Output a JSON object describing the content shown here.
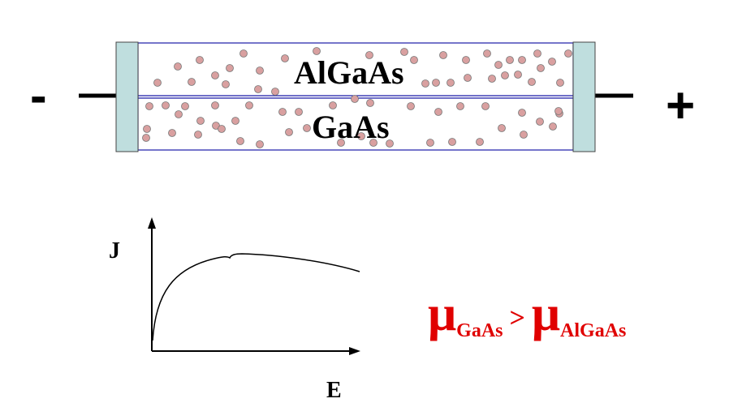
{
  "device": {
    "negative_terminal": "-",
    "positive_terminal": "+",
    "top_layer_label": "AlGaAs",
    "bottom_layer_label": "GaAs",
    "electron_color": "#d9a0a0"
  },
  "graph": {
    "ylabel": "J",
    "xlabel": "E"
  },
  "mobility_relation": {
    "symbol": "μ",
    "left_subscript": "GaAs",
    "operator": ">",
    "right_subscript": "AlGaAs",
    "color": "#e00000"
  }
}
